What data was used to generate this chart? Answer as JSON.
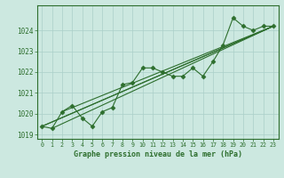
{
  "title": "Graphe pression niveau de la mer (hPa)",
  "bg_color": "#cce8e0",
  "line_color": "#2d6e2d",
  "grid_color": "#aacfc8",
  "ylim": [
    1018.8,
    1025.2
  ],
  "xlim": [
    -0.5,
    23.5
  ],
  "yticks": [
    1019,
    1020,
    1021,
    1022,
    1023,
    1024
  ],
  "xticks": [
    0,
    1,
    2,
    3,
    4,
    5,
    6,
    7,
    8,
    9,
    10,
    11,
    12,
    13,
    14,
    15,
    16,
    17,
    18,
    19,
    20,
    21,
    22,
    23
  ],
  "detail_series": [
    [
      1019.4,
      1019.3,
      1020.1,
      1020.4,
      1019.8,
      1019.4,
      1020.1,
      1020.3,
      1021.4,
      1021.5,
      1022.2,
      1022.2,
      1022.0,
      1021.8,
      1021.8,
      1022.2,
      1021.8,
      1022.5,
      1023.3,
      1024.6,
      1024.2,
      1024.0,
      1024.2,
      1024.2
    ]
  ],
  "straight_lines": [
    {
      "x": [
        0,
        23
      ],
      "y": [
        1019.4,
        1024.2
      ]
    },
    {
      "x": [
        0,
        23
      ],
      "y": [
        1019.4,
        1024.2
      ]
    },
    {
      "x": [
        1,
        23
      ],
      "y": [
        1019.3,
        1024.2
      ]
    },
    {
      "x": [
        2,
        23
      ],
      "y": [
        1020.1,
        1024.2
      ]
    }
  ],
  "marker": "D",
  "markersize": 2.5
}
